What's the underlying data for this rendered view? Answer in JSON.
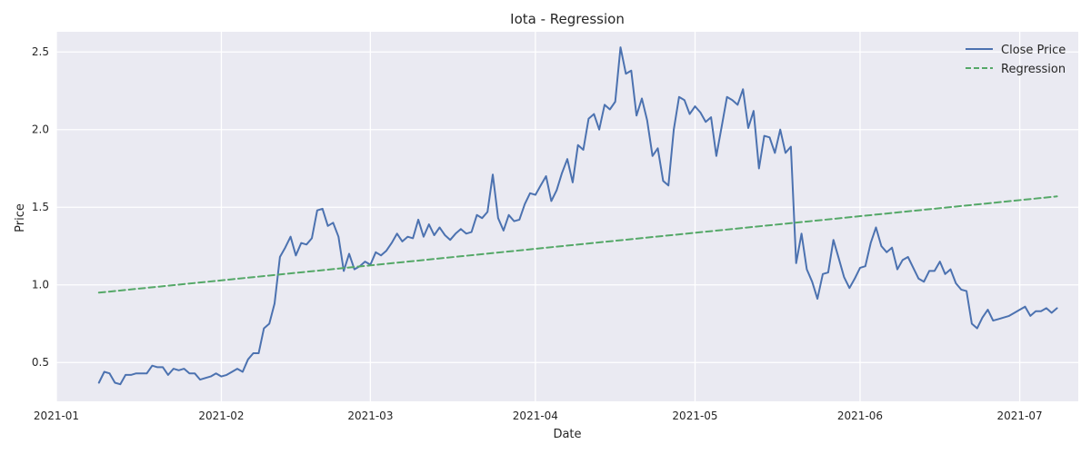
{
  "chart_data": {
    "type": "line",
    "title": "Iota - Regression",
    "xlabel": "Date",
    "ylabel": "Price",
    "xlim": [
      "2021-01-01",
      "2021-07-12"
    ],
    "ylim": [
      0.25,
      2.63
    ],
    "x_ticks": [
      "2021-01",
      "2021-02",
      "2021-03",
      "2021-04",
      "2021-05",
      "2021-06",
      "2021-07"
    ],
    "y_ticks": [
      "0.5",
      "1.0",
      "1.5",
      "2.0",
      "2.5"
    ],
    "grid": true,
    "legend_position": "top-right",
    "x_start": "2021-01-09",
    "x_end": "2021-07-08",
    "series": [
      {
        "name": "Close Price",
        "color": "#4c72b0",
        "style": "solid",
        "values": [
          0.37,
          0.44,
          0.43,
          0.37,
          0.36,
          0.42,
          0.42,
          0.43,
          0.43,
          0.43,
          0.48,
          0.47,
          0.47,
          0.42,
          0.46,
          0.45,
          0.46,
          0.43,
          0.43,
          0.39,
          0.4,
          0.41,
          0.43,
          0.41,
          0.42,
          0.44,
          0.46,
          0.44,
          0.52,
          0.56,
          0.56,
          0.72,
          0.75,
          0.88,
          1.18,
          1.24,
          1.31,
          1.19,
          1.27,
          1.26,
          1.3,
          1.48,
          1.49,
          1.38,
          1.4,
          1.31,
          1.09,
          1.2,
          1.1,
          1.12,
          1.15,
          1.13,
          1.21,
          1.19,
          1.22,
          1.27,
          1.33,
          1.28,
          1.31,
          1.3,
          1.42,
          1.31,
          1.39,
          1.32,
          1.37,
          1.32,
          1.29,
          1.33,
          1.36,
          1.33,
          1.34,
          1.45,
          1.43,
          1.47,
          1.71,
          1.43,
          1.35,
          1.45,
          1.41,
          1.42,
          1.52,
          1.59,
          1.58,
          1.64,
          1.7,
          1.54,
          1.61,
          1.72,
          1.81,
          1.66,
          1.9,
          1.87,
          2.07,
          2.1,
          2.0,
          2.16,
          2.13,
          2.18,
          2.53,
          2.36,
          2.38,
          2.09,
          2.2,
          2.06,
          1.83,
          1.88,
          1.67,
          1.64,
          2.0,
          2.21,
          2.19,
          2.1,
          2.15,
          2.11,
          2.05,
          2.08,
          1.83,
          2.02,
          2.21,
          2.19,
          2.16,
          2.26,
          2.01,
          2.12,
          1.75,
          1.96,
          1.95,
          1.85,
          2.0,
          1.85,
          1.89,
          1.14,
          1.33,
          1.1,
          1.02,
          0.91,
          1.07,
          1.08,
          1.29,
          1.17,
          1.05,
          0.98,
          1.04,
          1.11,
          1.12,
          1.27,
          1.37,
          1.25,
          1.21,
          1.24,
          1.1,
          1.16,
          1.18,
          1.11,
          1.04,
          1.02,
          1.09,
          1.09,
          1.15,
          1.07,
          1.1,
          1.01,
          0.97,
          0.96,
          0.75,
          0.72,
          0.79,
          0.84,
          0.77,
          0.78,
          0.79,
          0.8,
          0.82,
          0.84,
          0.86,
          0.8,
          0.83,
          0.83,
          0.85,
          0.82,
          0.85
        ]
      },
      {
        "name": "Regression",
        "color": "#55a868",
        "style": "dashed",
        "values": [
          0.95,
          1.57
        ]
      }
    ]
  }
}
